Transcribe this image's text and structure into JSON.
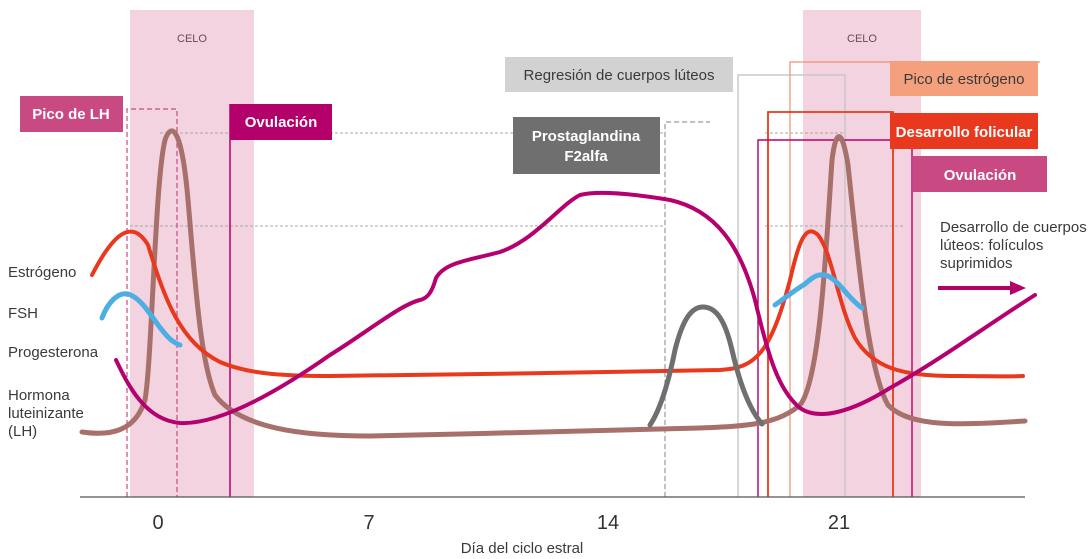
{
  "colors": {
    "estrogen": "#e8391e",
    "fsh": "#4daee3",
    "progesterone": "#b5006f",
    "lh": "#a8706a",
    "celo_band": "#f2d3df",
    "pico_lh": "#c94a83",
    "ovulacion": "#b4006b",
    "prostaglandina": "#6f6f6f",
    "regresion": "#d2d2d2",
    "pico_estrogeno": "#f4a07c",
    "desarrollo_folicular": "#e8391e"
  },
  "bands": [
    {
      "label": "CELO"
    },
    {
      "label": "CELO"
    }
  ],
  "callouts": {
    "pico_lh": "Pico de LH",
    "ovulacion_1": "Ovulación",
    "regresion": "Regresión de cuerpos lúteos",
    "prostaglandina_line1": "Prostaglandina",
    "prostaglandina_line2": "F2alfa",
    "pico_estrogeno": "Pico de estrógeno",
    "desarrollo_folicular": "Desarrollo folicular",
    "ovulacion_2": "Ovulación",
    "cuerpos_luteos_line1": "Desarrollo de cuerpos",
    "cuerpos_luteos_line2": "lúteos: folículos",
    "cuerpos_luteos_line3": "suprimidos"
  },
  "legend": {
    "estrogeno": "Estrógeno",
    "fsh": "FSH",
    "progesterona": "Progesterona",
    "lh_line1": "Hormona",
    "lh_line2": "luteinizante",
    "lh_line3": "(LH)"
  },
  "axis": {
    "xlabel": "Día del ciclo estral",
    "ticks": [
      "0",
      "7",
      "14",
      "21"
    ]
  }
}
